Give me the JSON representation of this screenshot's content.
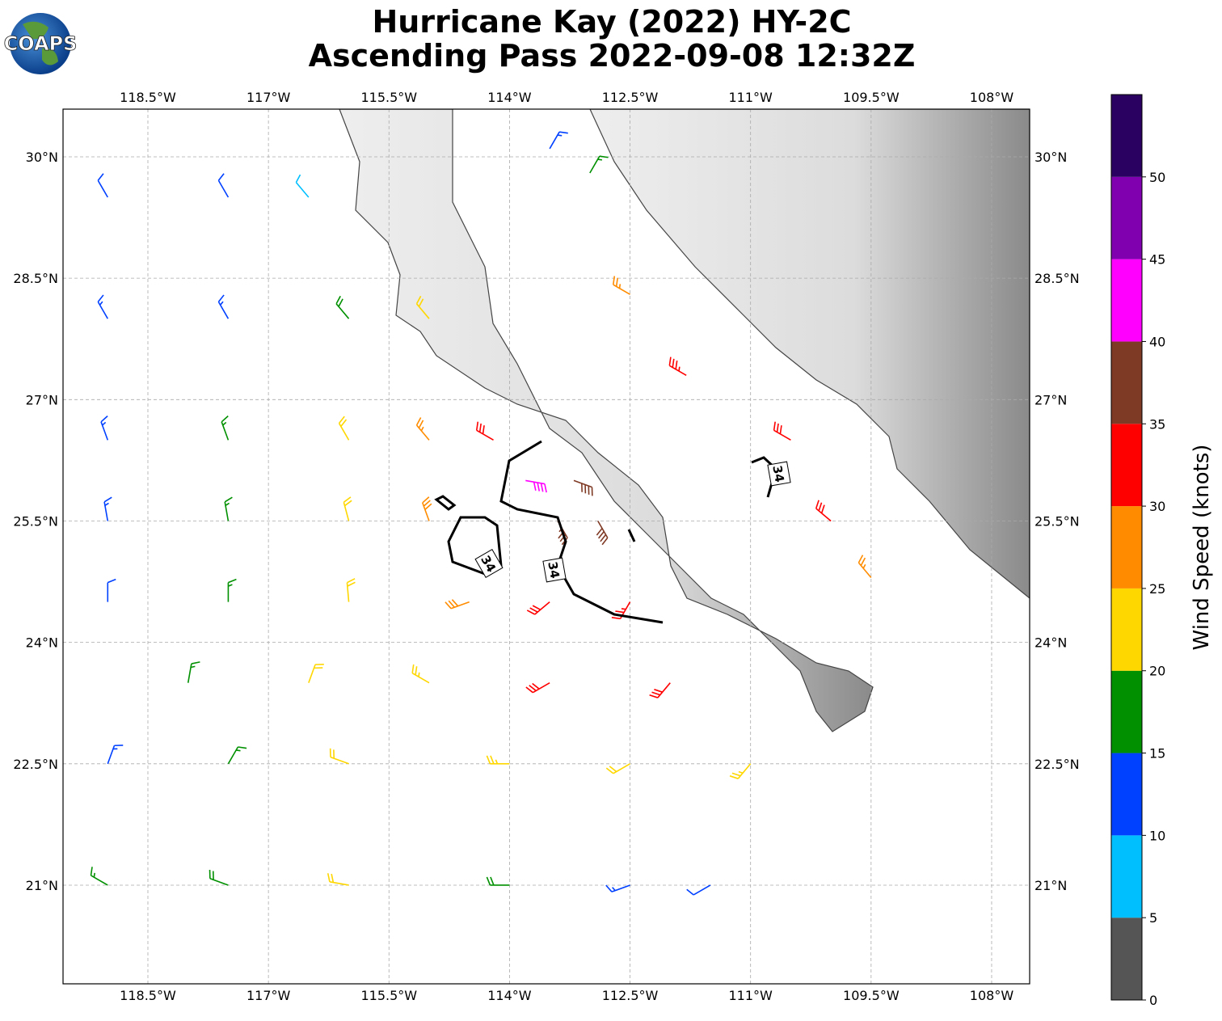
{
  "map": {
    "title": [
      "Hurricane Kay (2022) HY-2C",
      "Ascending Pass 2022-09-08 12:32Z"
    ],
    "logo_text": "COAPS",
    "xlim": [
      -119.556,
      -107.527
    ],
    "ylim": [
      19.781,
      30.589
    ],
    "xticks": [
      {
        "value": -118.5,
        "label": "118.5°W"
      },
      {
        "value": -117,
        "label": "117°W"
      },
      {
        "value": -115.5,
        "label": "115.5°W"
      },
      {
        "value": -114,
        "label": "114°W"
      },
      {
        "value": -112.5,
        "label": "112.5°W"
      },
      {
        "value": -111,
        "label": "111°W"
      },
      {
        "value": -109.5,
        "label": "109.5°W"
      },
      {
        "value": -108,
        "label": "108°W"
      }
    ],
    "yticks": [
      {
        "value": 30,
        "label": "30°N"
      },
      {
        "value": 28.5,
        "label": "28.5°N"
      },
      {
        "value": 27,
        "label": "27°N"
      },
      {
        "value": 25.5,
        "label": "25.5°N"
      },
      {
        "value": 24,
        "label": "24°N"
      },
      {
        "value": 22.5,
        "label": "22.5°N"
      },
      {
        "value": 21,
        "label": "21°N"
      }
    ],
    "grid": true,
    "contour": {
      "level": 34
    },
    "colorbar": {
      "label": "Wind Speed (knots)",
      "bounds": [
        0,
        5,
        10,
        15,
        20,
        25,
        30,
        35,
        40,
        45,
        50,
        55
      ],
      "colors": [
        "#555555",
        "#00bfff",
        "#0040ff",
        "#009000",
        "#ffd700",
        "#ff8c00",
        "#ff0000",
        "#7f3a25",
        "#ff00ff",
        "#8000b0",
        "#2a0060"
      ],
      "ticks": [
        0,
        5,
        10,
        15,
        20,
        25,
        30,
        35,
        40,
        45,
        50
      ]
    },
    "barbs": [
      [
        -119,
        29.5,
        12,
        330
      ],
      [
        -117.5,
        29.5,
        10,
        330
      ],
      [
        -116.5,
        29.5,
        8,
        320
      ],
      [
        -119,
        28,
        13,
        330
      ],
      [
        -117.5,
        28,
        14,
        330
      ],
      [
        -116,
        28,
        18,
        320
      ],
      [
        -115,
        28,
        22,
        320
      ],
      [
        -119,
        26.5,
        13,
        340
      ],
      [
        -117.5,
        26.5,
        16,
        340
      ],
      [
        -116,
        26.5,
        22,
        330
      ],
      [
        -115,
        26.5,
        27,
        320
      ],
      [
        -114.2,
        26.5,
        32,
        300
      ],
      [
        -119,
        25.5,
        13,
        350
      ],
      [
        -117.5,
        25.5,
        17,
        350
      ],
      [
        -116,
        25.5,
        22,
        345
      ],
      [
        -115,
        25.5,
        28,
        340
      ],
      [
        -113.4,
        25.5,
        37,
        150
      ],
      [
        -112.9,
        25.5,
        38,
        150
      ],
      [
        -113.8,
        26,
        42,
        100
      ],
      [
        -113.2,
        26,
        38,
        110
      ],
      [
        -119,
        24.5,
        12,
        0
      ],
      [
        -117.5,
        24.5,
        17,
        0
      ],
      [
        -116,
        24.5,
        22,
        355
      ],
      [
        -114.5,
        24.5,
        28,
        250
      ],
      [
        -113.5,
        24.5,
        32,
        230
      ],
      [
        -112.5,
        24.5,
        33,
        210
      ],
      [
        -118,
        23.5,
        17,
        10
      ],
      [
        -116.5,
        23.5,
        22,
        20
      ],
      [
        -115,
        23.5,
        24,
        300
      ],
      [
        -113.5,
        23.5,
        30,
        240
      ],
      [
        -112,
        23.5,
        31,
        220
      ],
      [
        -119,
        22.5,
        14,
        20
      ],
      [
        -117.5,
        22.5,
        17,
        30
      ],
      [
        -116,
        22.5,
        22,
        290
      ],
      [
        -114,
        22.5,
        24,
        270
      ],
      [
        -112.5,
        22.5,
        22,
        240
      ],
      [
        -111,
        22.5,
        24,
        220
      ],
      [
        -119,
        21,
        16,
        300
      ],
      [
        -117.5,
        21,
        18,
        290
      ],
      [
        -116,
        21,
        22,
        280
      ],
      [
        -114,
        21,
        18,
        270
      ],
      [
        -112.5,
        21,
        14,
        250
      ],
      [
        -111.5,
        21,
        12,
        240
      ],
      [
        -111.8,
        27.3,
        33,
        300
      ],
      [
        -110.5,
        26.5,
        32,
        300
      ],
      [
        -110,
        25.5,
        30,
        310
      ],
      [
        -109.5,
        24.8,
        27,
        320
      ],
      [
        -112.5,
        28.3,
        26,
        300
      ],
      [
        -113.5,
        30.1,
        13,
        30
      ],
      [
        -113,
        29.8,
        17,
        30
      ]
    ]
  }
}
